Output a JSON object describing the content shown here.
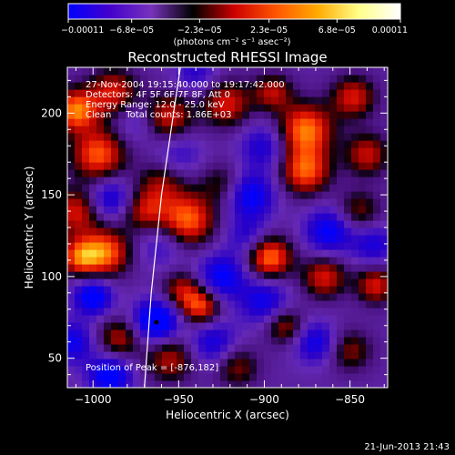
{
  "chart_data": {
    "type": "heatmap",
    "title": "Reconstructed RHESSI Image",
    "xlabel": "Heliocentric X (arcsec)",
    "ylabel": "Heliocentric Y (arcsec)",
    "xlim": [
      -1015,
      -828
    ],
    "ylim": [
      32,
      228
    ],
    "x_ticks": [
      -1000,
      -950,
      -900,
      -850
    ],
    "x_tick_labels": [
      "−1000",
      "−950",
      "−900",
      "−850"
    ],
    "y_ticks": [
      50,
      100,
      150,
      200
    ],
    "y_tick_labels": [
      "50",
      "100",
      "150",
      "200"
    ],
    "colorbar": {
      "ticks": [
        -0.00011,
        -6.8e-05,
        -2.3e-05,
        2.3e-05,
        6.8e-05,
        0.00011
      ],
      "tick_labels": [
        "−0.00011",
        "−6.8e−05",
        "−2.3e−05",
        "2.3e−05",
        "6.8e−05",
        "0.00011"
      ],
      "units": "(photons cm⁻² s⁻¹ asec⁻²)",
      "colors": [
        "#0000ff",
        "#4400cc",
        "#7733bb",
        "#000000",
        "#cc0000",
        "#ff5500",
        "#ffaa00",
        "#ffff88",
        "#ffffff"
      ]
    },
    "annotations": [
      "27-Nov-2004 19:15:40.000 to 19:17:42.000",
      "Detectors: 4F 5F 6F 7F 8F, Att 0",
      "Energy Range: 12.0 - 25.0 keV",
      "Clean     Total counts: 1.86E+03",
      "Position of Peak = [-876,182]"
    ],
    "peak": {
      "x": -876,
      "y": 182
    },
    "features": [
      {
        "x": -1010,
        "y": 202,
        "v": 1.0,
        "r": 9
      },
      {
        "x": -988,
        "y": 213,
        "v": 0.7,
        "r": 10
      },
      {
        "x": -997,
        "y": 175,
        "v": 0.9,
        "r": 11
      },
      {
        "x": -956,
        "y": 198,
        "v": 0.7,
        "r": 10
      },
      {
        "x": -945,
        "y": 135,
        "v": 0.95,
        "r": 11
      },
      {
        "x": -970,
        "y": 140,
        "v": 0.6,
        "r": 9
      },
      {
        "x": -960,
        "y": 157,
        "v": 0.5,
        "r": 10
      },
      {
        "x": -993,
        "y": 115,
        "v": 0.95,
        "r": 10
      },
      {
        "x": -1010,
        "y": 140,
        "v": 0.7,
        "r": 10
      },
      {
        "x": -948,
        "y": 92,
        "v": 0.6,
        "r": 8
      },
      {
        "x": -937,
        "y": 82,
        "v": 0.85,
        "r": 8
      },
      {
        "x": -955,
        "y": 50,
        "v": 0.6,
        "r": 10
      },
      {
        "x": -985,
        "y": 62,
        "v": 0.6,
        "r": 9
      },
      {
        "x": -1008,
        "y": 112,
        "v": 0.8,
        "r": 8
      },
      {
        "x": -897,
        "y": 112,
        "v": 1.0,
        "r": 9
      },
      {
        "x": -922,
        "y": 206,
        "v": 0.7,
        "r": 10
      },
      {
        "x": -895,
        "y": 213,
        "v": 0.6,
        "r": 8
      },
      {
        "x": -876,
        "y": 190,
        "v": 1.0,
        "r": 11
      },
      {
        "x": -876,
        "y": 165,
        "v": 0.9,
        "r": 10
      },
      {
        "x": -848,
        "y": 210,
        "v": 0.7,
        "r": 9
      },
      {
        "x": -840,
        "y": 175,
        "v": 0.65,
        "r": 9
      },
      {
        "x": -845,
        "y": 140,
        "v": 0.5,
        "r": 9
      },
      {
        "x": -865,
        "y": 100,
        "v": 0.7,
        "r": 9
      },
      {
        "x": -835,
        "y": 95,
        "v": 0.7,
        "r": 8
      },
      {
        "x": -888,
        "y": 70,
        "v": 0.6,
        "r": 8
      },
      {
        "x": -850,
        "y": 55,
        "v": 0.5,
        "r": 9
      },
      {
        "x": -916,
        "y": 45,
        "v": 0.5,
        "r": 9
      },
      {
        "x": -925,
        "y": 157,
        "v": 0.4,
        "r": 9
      },
      {
        "x": -963,
        "y": 73,
        "v": -1.0,
        "r": 9
      },
      {
        "x": -925,
        "y": 100,
        "v": -0.7,
        "r": 10
      },
      {
        "x": -990,
        "y": 40,
        "v": -0.8,
        "r": 9
      },
      {
        "x": -908,
        "y": 150,
        "v": -0.7,
        "r": 10
      },
      {
        "x": -1000,
        "y": 88,
        "v": -0.8,
        "r": 8
      },
      {
        "x": -990,
        "y": 148,
        "v": -0.6,
        "r": 9
      },
      {
        "x": -862,
        "y": 128,
        "v": -0.7,
        "r": 10
      },
      {
        "x": -900,
        "y": 85,
        "v": -0.6,
        "r": 10
      },
      {
        "x": -870,
        "y": 60,
        "v": -0.6,
        "r": 9
      },
      {
        "x": -930,
        "y": 60,
        "v": -0.55,
        "r": 10
      },
      {
        "x": -1012,
        "y": 60,
        "v": -0.6,
        "r": 9
      },
      {
        "x": -836,
        "y": 120,
        "v": -0.5,
        "r": 9
      },
      {
        "x": -900,
        "y": 180,
        "v": -0.5,
        "r": 10
      },
      {
        "x": -960,
        "y": 120,
        "v": -0.35,
        "r": 10
      },
      {
        "x": -950,
        "y": 175,
        "v": -0.35,
        "r": 10
      },
      {
        "x": -940,
        "y": 225,
        "v": -0.4,
        "r": 9
      },
      {
        "x": -975,
        "y": 195,
        "v": -0.3,
        "r": 9
      },
      {
        "x": -910,
        "y": 125,
        "v": -0.4,
        "r": 9
      }
    ],
    "limb_curve": [
      {
        "x": -970,
        "y": 32
      },
      {
        "x": -966,
        "y": 90
      },
      {
        "x": -960,
        "y": 150
      },
      {
        "x": -953,
        "y": 200
      },
      {
        "x": -949,
        "y": 228
      }
    ],
    "peak_marker": {
      "x": -963,
      "y": 72
    }
  },
  "footer": {
    "date_stamp": "21-Jun-2013 21:43"
  }
}
